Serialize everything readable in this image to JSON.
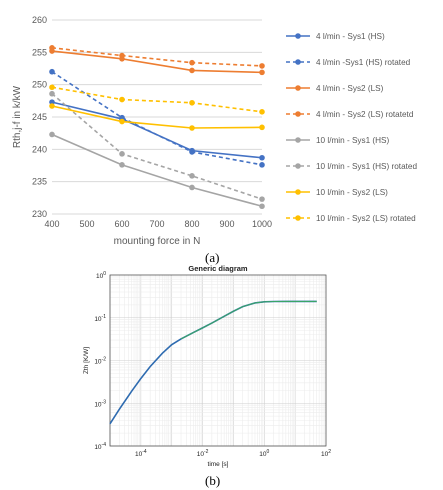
{
  "chart_data": [
    {
      "type": "line",
      "x": [
        400,
        600,
        800,
        1000
      ],
      "xlabel": "mounting force in N",
      "ylabel": "Rth,j-f in k/kW",
      "xlim": [
        400,
        1000
      ],
      "ylim": [
        230,
        260
      ],
      "xticks": [
        400,
        500,
        600,
        700,
        800,
        900,
        1000
      ],
      "yticks": [
        230,
        235,
        240,
        245,
        250,
        255,
        260
      ],
      "grid": true,
      "legend_position": "right",
      "series": [
        {
          "name": "4 l/min - Sys1 (HS)",
          "values": [
            247.3,
            244.7,
            239.8,
            238.7
          ],
          "color": "#4472C4",
          "dash": false
        },
        {
          "name": "4 l/min -Sys1 (HS) rotated",
          "values": [
            252.0,
            244.9,
            239.6,
            237.6
          ],
          "color": "#4472C4",
          "dash": true
        },
        {
          "name": "4 l/min - Sys2 (LS)",
          "values": [
            255.2,
            254.0,
            252.2,
            251.9
          ],
          "color": "#ED7D31",
          "dash": false
        },
        {
          "name": "4 l/min - Sys2 (LS) rotatetd",
          "values": [
            255.7,
            254.5,
            253.4,
            252.9
          ],
          "color": "#ED7D31",
          "dash": true
        },
        {
          "name": "10 l/min - Sys1 (HS)",
          "values": [
            242.3,
            237.6,
            234.1,
            231.2
          ],
          "color": "#A5A5A5",
          "dash": false
        },
        {
          "name": "10 l/min - Sys1 (HS) rotated",
          "values": [
            248.6,
            239.3,
            235.9,
            232.3
          ],
          "color": "#A5A5A5",
          "dash": true
        },
        {
          "name": "10 l/min - Sys2 (LS)",
          "values": [
            246.7,
            244.3,
            243.3,
            243.4
          ],
          "color": "#FFC000",
          "dash": false
        },
        {
          "name": "10 l/min - Sys2 (LS) rotated",
          "values": [
            249.6,
            247.7,
            247.2,
            245.8
          ],
          "color": "#FFC000",
          "dash": true
        }
      ]
    },
    {
      "type": "line",
      "title": "Generic diagram",
      "xlabel": "time [s]",
      "ylabel": "Zth [K/W]",
      "xscale": "log",
      "yscale": "log",
      "xlim": [
        1e-05,
        100
      ],
      "ylim": [
        0.0001,
        1
      ],
      "xticks": [
        {
          "label": "10",
          "exp": "-4",
          "value": 0.0001
        },
        {
          "label": "10",
          "exp": "-2",
          "value": 0.01
        },
        {
          "label": "10",
          "exp": "0",
          "value": 1
        },
        {
          "label": "10",
          "exp": "2",
          "value": 100
        }
      ],
      "yticks": [
        {
          "label": "10",
          "exp": "-4",
          "value": 0.0001
        },
        {
          "label": "10",
          "exp": "-3",
          "value": 0.001
        },
        {
          "label": "10",
          "exp": "-2",
          "value": 0.01
        },
        {
          "label": "10",
          "exp": "-1",
          "value": 0.1
        },
        {
          "label": "10",
          "exp": "0",
          "value": 1
        }
      ],
      "grid": true,
      "series": [
        {
          "x": [
            1e-05,
            2e-05,
            5e-05,
            0.0001,
            0.0002,
            0.0005,
            0.001,
            0.002,
            0.005,
            0.01,
            0.02,
            0.05,
            0.1,
            0.2,
            0.5,
            1,
            2,
            5,
            10,
            20,
            50
          ],
          "values": [
            0.00033,
            0.00072,
            0.0019,
            0.0038,
            0.0072,
            0.0148,
            0.0235,
            0.032,
            0.045,
            0.058,
            0.075,
            0.108,
            0.142,
            0.182,
            0.222,
            0.236,
            0.24,
            0.241,
            0.241,
            0.241,
            0.241
          ],
          "color": "#2E6BB0",
          "highlight_color": "#3BAF5B"
        }
      ]
    }
  ],
  "labels": {
    "a": "(a)",
    "b": "(b)"
  }
}
